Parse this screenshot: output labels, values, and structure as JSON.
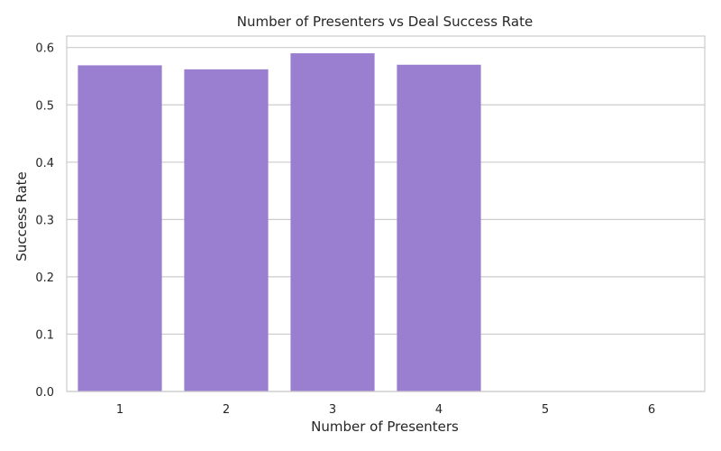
{
  "chart_data": {
    "type": "bar",
    "title": "Number of Presenters vs Deal Success Rate",
    "xlabel": "Number of Presenters",
    "ylabel": "Success Rate",
    "categories": [
      "1",
      "2",
      "3",
      "4",
      "5",
      "6"
    ],
    "values": [
      0.569,
      0.562,
      0.59,
      0.57,
      0,
      0
    ],
    "ylim": [
      0,
      0.62
    ],
    "yticks": [
      "0.0",
      "0.1",
      "0.2",
      "0.3",
      "0.4",
      "0.5",
      "0.6"
    ],
    "grid": true,
    "bar_color": "#9a7fd1",
    "grid_color": "#cccccc",
    "axes_edge_color": "#cccccc"
  }
}
